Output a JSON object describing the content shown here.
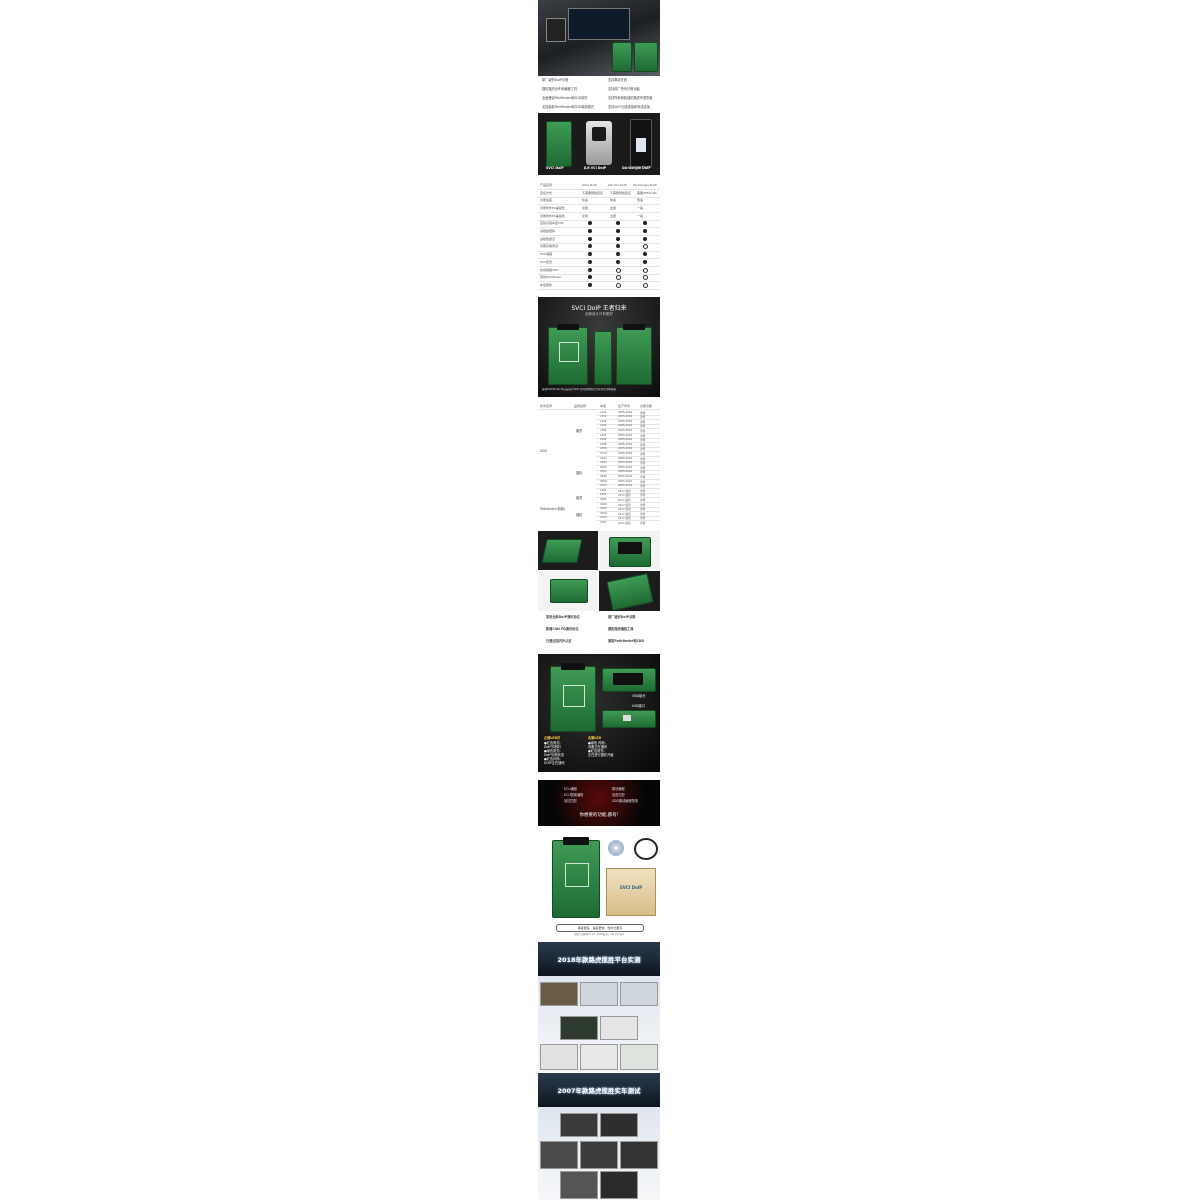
{
  "features_top": {
    "left": [
      "原厂级别DoIP诊断",
      "捷豹路虎全车系编程工具",
      "全面兼容Pathfinder和SDD软件",
      "支持最新Pathfinder和SDD离线模式"
    ],
    "right": [
      "支持离线在线",
      "支持原厂所有诊断功能",
      "支持所有新款捷豹路虎车型配置",
      "支持WIFI无线连接和有线连接"
    ]
  },
  "products": {
    "labels": [
      "SVCI DoIP",
      "JLR VCI DoIP",
      "DA-Dongle DoIP"
    ]
  },
  "compare": {
    "header": [
      "产品名称",
      "SVCI DoIP",
      "JLR VCI DoIP",
      "DA-Dongle DoIP"
    ],
    "rows": [
      {
        "name": "连接方式",
        "v": [
          "不需要网络连接",
          "不需要网络连接",
          "需要WIFI/LAN"
        ]
      },
      {
        "name": "诊断速度",
        "v": [
          "快速",
          "快速",
          "慢速"
        ]
      },
      {
        "name": "诊断软件PC兼容性",
        "v": [
          "全部",
          "全部",
          "一般"
        ]
      },
      {
        "name": "诊断软件PC兼容性",
        "v": [
          "全部",
          "全部",
          "一般"
        ]
      },
      {
        "name": "自动识别车型VIN",
        "v": [
          "f",
          "f",
          "f"
        ]
      },
      {
        "name": "读取故障码",
        "v": [
          "f",
          "f",
          "f"
        ]
      },
      {
        "name": "读取数据流",
        "v": [
          "f",
          "f",
          "f"
        ]
      },
      {
        "name": "诊断系统测试",
        "v": [
          "f",
          "f",
          "e"
        ]
      },
      {
        "name": "ECU编程",
        "v": [
          "f",
          "f",
          "f"
        ]
      },
      {
        "name": "ECU配置",
        "v": [
          "f",
          "f",
          "f"
        ]
      },
      {
        "name": "在线编程SDD",
        "v": [
          "f",
          "e",
          "e"
        ]
      },
      {
        "name": "离线Pathfinder",
        "v": [
          "f",
          "e",
          "e"
        ]
      },
      {
        "name": "车型更新",
        "v": [
          "f",
          "e",
          "e"
        ]
      }
    ]
  },
  "hero": {
    "title": "SVCI DoIP 王者归来",
    "subtitle": "全新设计只有更好",
    "caption": "兼容Pathfinder并完美运行SDD,支持捷豹路虎全系车型诊断编程"
  },
  "coverage": {
    "header": [
      "软件名称",
      "品牌名称",
      "车型",
      "生产年份",
      "诊断功能"
    ],
    "software": [
      "SDD",
      "Pathfinder(新款)"
    ],
    "brands": [
      "路虎",
      "捷豹",
      "路虎",
      "捷豹"
    ],
    "rows": [
      [
        "L316",
        "2005-2016",
        "诊断"
      ],
      [
        "L319",
        "2005-2016",
        "诊断"
      ],
      [
        "L320",
        "2005-2016",
        "诊断"
      ],
      [
        "L322",
        "2005-2016",
        "诊断"
      ],
      [
        "L359",
        "2005-2016",
        "诊断"
      ],
      [
        "L405",
        "2005-2016",
        "诊断"
      ],
      [
        "L494",
        "2005-2016",
        "诊断"
      ],
      [
        "L538",
        "2005-2016",
        "诊断"
      ],
      [
        "L550",
        "2005-2016",
        "诊断"
      ],
      [
        "X150",
        "2005-2016",
        "诊断"
      ],
      [
        "X152",
        "2005-2016",
        "诊断"
      ],
      [
        "X250",
        "2005-2016",
        "诊断"
      ],
      [
        "X260",
        "2005-2016",
        "诊断"
      ],
      [
        "X351",
        "2005-2016",
        "诊断"
      ],
      [
        "X540",
        "2005-2016",
        "诊断"
      ],
      [
        "X590",
        "2005-2016",
        "诊断"
      ],
      [
        "X761",
        "2005-2016",
        "诊断"
      ],
      [
        "L462",
        "2017-最新",
        "诊断"
      ],
      [
        "L551",
        "2017-最新",
        "诊断"
      ],
      [
        "L560",
        "2017-最新",
        "诊断"
      ],
      [
        "X260",
        "2017-最新",
        "诊断"
      ],
      [
        "X540",
        "2017-最新",
        "诊断"
      ],
      [
        "X590",
        "2017-最新",
        "诊断"
      ],
      [
        "X760",
        "2017-最新",
        "诊断"
      ],
      [
        "X761",
        "2017-最新",
        "诊断"
      ]
    ]
  },
  "features_mid": {
    "left": [
      "采用全新DoIP通讯协议",
      "新增CAN FD通讯协议",
      "已通过国内外认证"
    ],
    "right": [
      "原厂级别DoIP诊断",
      "捷豹路虎编程工具",
      "兼容Pathfinder和SDD"
    ]
  },
  "parts": {
    "obd_label": "OBD接头",
    "usb_label": "USB接口",
    "led_left_title": "左侧LED灯",
    "led_left": [
      "●红色常亮:",
      "DoIP诊断时",
      "●绿色常亮:",
      "DoIP诊断状态",
      "●红色闪烁:",
      "DOIP正在通讯"
    ],
    "led_right_title": "右侧LED",
    "led_right": [
      "●绿色 闪烁:",
      "设备正在通讯",
      "●红色常亮:",
      "正在进行固件升级"
    ]
  },
  "functions": {
    "left": [
      "ECU编程",
      "ECU配置编程",
      "遥控匹配"
    ],
    "right": [
      "模块编程",
      "加密匹配",
      "SDD离线编程配置"
    ],
    "tagline": "你想要的功能,都有!"
  },
  "package": {
    "box_label": "SVCI DoIP",
    "banner": "承载更多 · 速度更快 · 性价比更高",
    "sub": "功能已超越JLR VCI DoIP和原厂DA Dongle"
  },
  "band1": {
    "title": "2018年款路虎揽胜平台实测"
  },
  "band2": {
    "title": "2007年款路虎揽胜实车测试"
  }
}
